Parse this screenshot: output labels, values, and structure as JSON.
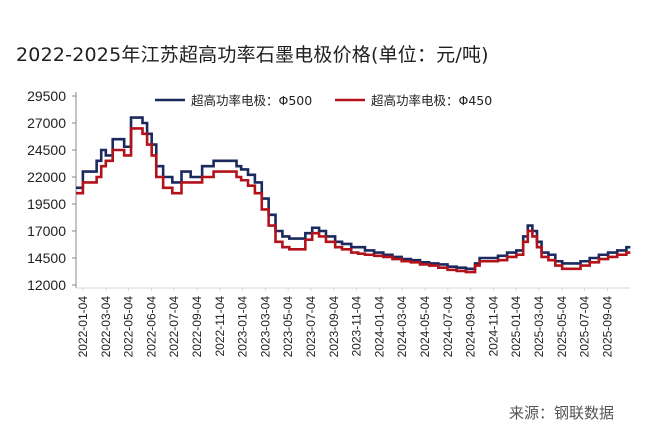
{
  "title": "2022-2025年江苏超高功率石墨电极价格(单位：元/吨)",
  "source": "来源：钢联数据",
  "legend": [
    {
      "label": "超高功率电极：Φ500",
      "color": "#1b2a5e"
    },
    {
      "label": "超高功率电极：Φ450",
      "color": "#b3121b"
    }
  ],
  "chart_data": {
    "type": "line",
    "title": "2022-2025年江苏超高功率石墨电极价格(单位：元/吨)",
    "xlabel": "",
    "ylabel": "元/吨",
    "ylim": [
      12000,
      29500
    ],
    "yticks": [
      12000,
      14500,
      17000,
      19500,
      22000,
      24500,
      27000,
      29500
    ],
    "xtick_labels": [
      "2022-01-04",
      "2022-03-04",
      "2022-05-04",
      "2022-06-04",
      "2022-07-04",
      "2022-09-04",
      "2022-11-04",
      "2023-01-04",
      "2023-03-04",
      "2023-05-04",
      "2023-07-04",
      "2023-09-04",
      "2023-11-04",
      "2024-01-04",
      "2024-03-04",
      "2024-05-04",
      "2024-07-04",
      "2024-09-04",
      "2024-11-04",
      "2025-01-04",
      "2025-03-04",
      "2025-05-04",
      "2025-07-04",
      "2025-09-04"
    ],
    "grid": false,
    "legend_position": "top",
    "step": true,
    "x": [
      0,
      0.3,
      0.6,
      0.9,
      1.1,
      1.3,
      1.6,
      1.9,
      2.1,
      2.4,
      2.7,
      2.9,
      3.1,
      3.3,
      3.5,
      3.8,
      4.2,
      4.6,
      5.0,
      5.5,
      6.0,
      6.4,
      6.7,
      7.0,
      7.2,
      7.5,
      7.8,
      8.1,
      8.4,
      8.7,
      9.0,
      9.3,
      9.6,
      10.0,
      10.3,
      10.6,
      10.9,
      11.3,
      11.6,
      12.0,
      12.3,
      12.6,
      13.0,
      13.4,
      13.8,
      14.2,
      14.6,
      15.0,
      15.4,
      15.8,
      16.2,
      16.6,
      17.0,
      17.4,
      17.6,
      18.0,
      18.4,
      18.8,
      19.2,
      19.5,
      19.7,
      19.9,
      20.1,
      20.3,
      20.6,
      20.9,
      21.2,
      21.6,
      22.0,
      22.4,
      22.8,
      23.2,
      23.6,
      24.0
    ],
    "series": [
      {
        "name": "超高功率电极：Φ500",
        "color": "#1b2a5e",
        "values": [
          21000,
          22500,
          22500,
          23500,
          24500,
          24000,
          25500,
          25500,
          24800,
          27500,
          27500,
          27000,
          26000,
          25000,
          23000,
          22000,
          21500,
          22500,
          22000,
          23000,
          23500,
          23500,
          23500,
          23000,
          22700,
          22200,
          21500,
          20000,
          18500,
          17000,
          16500,
          16300,
          16300,
          16800,
          17300,
          17000,
          16500,
          16000,
          15800,
          15500,
          15500,
          15200,
          15000,
          14800,
          14600,
          14400,
          14300,
          14100,
          14000,
          13900,
          13700,
          13600,
          13500,
          14000,
          14500,
          14500,
          14700,
          15000,
          15200,
          16500,
          17500,
          17000,
          16000,
          15000,
          14800,
          14200,
          14000,
          14000,
          14200,
          14500,
          14800,
          15000,
          15200,
          15500
        ]
      },
      {
        "name": "超高功率电极：Φ450",
        "color": "#b3121b",
        "values": [
          20500,
          21500,
          21500,
          22000,
          23000,
          23500,
          24500,
          24500,
          24000,
          26500,
          26500,
          26000,
          25000,
          24000,
          22000,
          21000,
          20500,
          21500,
          21500,
          22000,
          22500,
          22500,
          22500,
          22000,
          21700,
          21200,
          20500,
          19000,
          17500,
          16000,
          15500,
          15300,
          15300,
          16200,
          16800,
          16500,
          16000,
          15500,
          15300,
          15000,
          14900,
          14800,
          14700,
          14600,
          14400,
          14200,
          14100,
          13900,
          13800,
          13600,
          13400,
          13300,
          13200,
          13800,
          14200,
          14200,
          14300,
          14600,
          14800,
          16000,
          17000,
          16500,
          15500,
          14600,
          14300,
          13800,
          13500,
          13500,
          13800,
          14100,
          14400,
          14600,
          14800,
          15000
        ]
      }
    ]
  }
}
